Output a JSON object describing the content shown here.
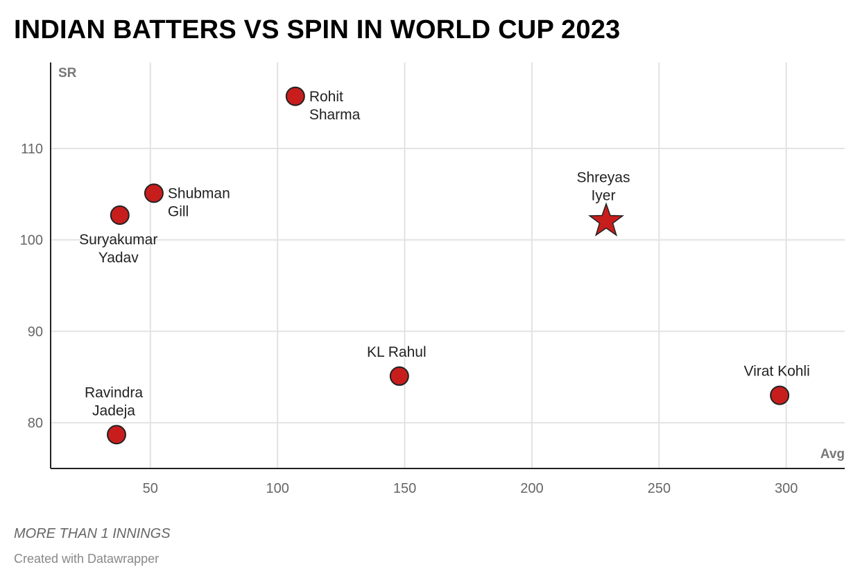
{
  "chart_data": {
    "type": "scatter",
    "title": "INDIAN BATTERS VS SPIN IN WORLD CUP 2023",
    "xlabel": "Avg",
    "ylabel": "SR",
    "xlim": [
      10.8,
      323
    ],
    "ylim": [
      75,
      119.4
    ],
    "xticks": [
      50,
      100,
      150,
      200,
      250,
      300
    ],
    "yticks": [
      80,
      90,
      100,
      110
    ],
    "grid": true,
    "marker_color": "#c71e1d",
    "points": [
      {
        "name": "Rohit Sharma",
        "lines": [
          "Rohit",
          "Sharma"
        ],
        "x": 107.0,
        "y": 115.7,
        "label_position": "right",
        "marker": "circle"
      },
      {
        "name": "Shubman Gill",
        "lines": [
          "Shubman",
          "Gill"
        ],
        "x": 51.4,
        "y": 105.1,
        "label_position": "right",
        "marker": "circle"
      },
      {
        "name": "Suryakumar Yadav",
        "lines": [
          "Suryakumar",
          "Yadav"
        ],
        "x": 38.0,
        "y": 102.7,
        "label_position": "below",
        "marker": "circle"
      },
      {
        "name": "Shreyas Iyer",
        "lines": [
          "Shreyas",
          "Iyer"
        ],
        "x": 229.2,
        "y": 102.2,
        "label_position": "above",
        "marker": "star"
      },
      {
        "name": "KL Rahul",
        "lines": [
          "KL Rahul"
        ],
        "x": 147.9,
        "y": 85.1,
        "label_position": "above",
        "marker": "circle"
      },
      {
        "name": "Virat Kohli",
        "lines": [
          "Virat Kohli"
        ],
        "x": 297.4,
        "y": 83.0,
        "label_position": "above",
        "marker": "circle"
      },
      {
        "name": "Ravindra Jadeja",
        "lines": [
          "Ravindra",
          "Jadeja"
        ],
        "x": 36.7,
        "y": 78.7,
        "label_position": "above",
        "marker": "circle"
      }
    ]
  },
  "footer": {
    "note": "MORE THAN 1 INNINGS",
    "credit": "Created with Datawrapper"
  }
}
